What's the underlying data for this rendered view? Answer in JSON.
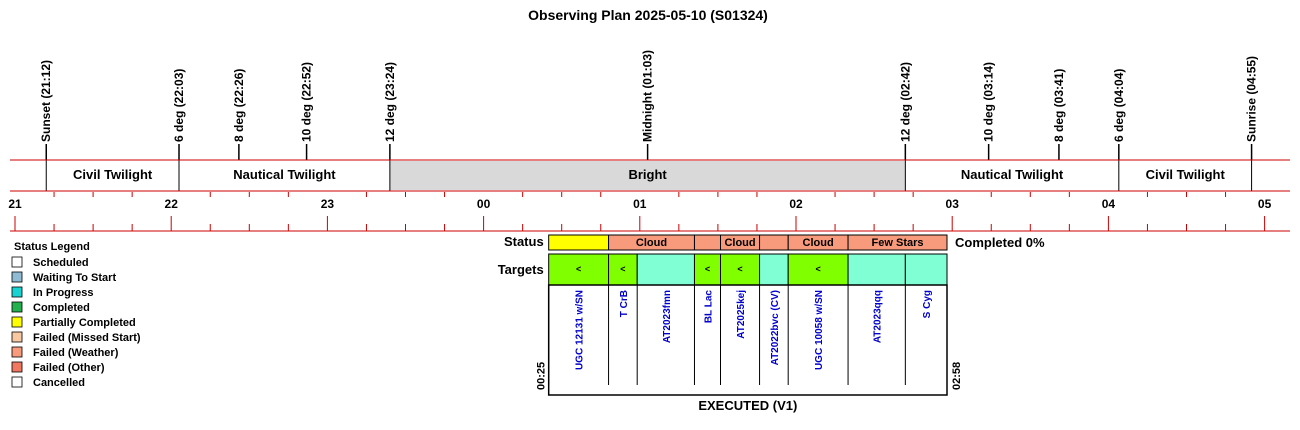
{
  "title": "Observing Plan 2025-05-10 (S01324)",
  "colors": {
    "red": "#cc0000",
    "bright": "#d9d9d9",
    "scheduled": "#ffffff",
    "waiting": "#8fbcd4",
    "in_progress": "#19d3d3",
    "completed": "#22b14c",
    "partial": "#ffff00",
    "missed": "#f8c8a0",
    "weather": "#f79b7c",
    "other": "#f07860",
    "cancelled": "#ffffff",
    "target_green": "#7fff00",
    "target_aqua": "#80ffd4",
    "target_text": "#0000cc"
  },
  "time_axis": {
    "start_hour": 21,
    "end_hour": 29,
    "hour_labels": [
      "21",
      "22",
      "23",
      "00",
      "01",
      "02",
      "03",
      "04",
      "05"
    ]
  },
  "events": [
    {
      "label": "Sunset (21:12)",
      "hour": 21.2
    },
    {
      "label": "6 deg (22:03)",
      "hour": 22.05
    },
    {
      "label": "8 deg (22:26)",
      "hour": 22.4333
    },
    {
      "label": "10 deg (22:52)",
      "hour": 22.8667
    },
    {
      "label": "12 deg (23:24)",
      "hour": 23.4
    },
    {
      "label": "Midnight (01:03)",
      "hour": 25.05
    },
    {
      "label": "12 deg (02:42)",
      "hour": 26.7
    },
    {
      "label": "10 deg (03:14)",
      "hour": 27.2333
    },
    {
      "label": "8 deg (03:41)",
      "hour": 27.6833
    },
    {
      "label": "6 deg (04:04)",
      "hour": 28.0667
    },
    {
      "label": "Sunrise (04:55)",
      "hour": 28.9167
    }
  ],
  "periods": [
    {
      "label": "Civil Twilight",
      "start": 21.2,
      "end": 22.05,
      "shaded": false
    },
    {
      "label": "Nautical Twilight",
      "start": 22.05,
      "end": 23.4,
      "shaded": false
    },
    {
      "label": "Bright",
      "start": 23.4,
      "end": 26.7,
      "shaded": true
    },
    {
      "label": "Nautical Twilight",
      "start": 26.7,
      "end": 28.0667,
      "shaded": false
    },
    {
      "label": "Civil Twilight",
      "start": 28.0667,
      "end": 28.9167,
      "shaded": false
    }
  ],
  "legend": {
    "title": "Status Legend",
    "items": [
      {
        "label": "Scheduled",
        "color": "#ffffff"
      },
      {
        "label": "Waiting To Start",
        "color": "#8fbcd4"
      },
      {
        "label": "In Progress",
        "color": "#19d3d3"
      },
      {
        "label": "Completed",
        "color": "#22b14c"
      },
      {
        "label": "Partially Completed",
        "color": "#ffff00"
      },
      {
        "label": "Failed (Missed Start)",
        "color": "#f8c8a0"
      },
      {
        "label": "Failed (Weather)",
        "color": "#f79b7c"
      },
      {
        "label": "Failed (Other)",
        "color": "#f07860"
      },
      {
        "label": "Cancelled",
        "color": "#ffffff"
      }
    ]
  },
  "plan": {
    "status_label": "Status",
    "targets_label": "Targets",
    "completed_text": "Completed 0%",
    "start_time": "00:25",
    "end_time": "02:58",
    "footer": "EXECUTED (V1)",
    "status_segments": [
      {
        "start": 24.4167,
        "end": 24.8,
        "color": "#ffff00",
        "label": ""
      },
      {
        "start": 24.8,
        "end": 25.35,
        "color": "#f79b7c",
        "label": "Cloud"
      },
      {
        "start": 25.35,
        "end": 25.5167,
        "color": "#f79b7c",
        "label": ""
      },
      {
        "start": 25.5167,
        "end": 25.7667,
        "color": "#f79b7c",
        "label": "Cloud"
      },
      {
        "start": 25.7667,
        "end": 25.95,
        "color": "#f79b7c",
        "label": ""
      },
      {
        "start": 25.95,
        "end": 26.3333,
        "color": "#f79b7c",
        "label": "Cloud"
      },
      {
        "start": 26.3333,
        "end": 26.9667,
        "color": "#f79b7c",
        "label": "Few Stars"
      }
    ],
    "targets": [
      {
        "name": "UGC 12131 w/SN",
        "start": 24.4167,
        "end": 24.8,
        "color": "#7fff00",
        "mark": "<"
      },
      {
        "name": "T CrB",
        "start": 24.8,
        "end": 24.9833,
        "color": "#7fff00",
        "mark": "<"
      },
      {
        "name": "AT2023fmn",
        "start": 24.9833,
        "end": 25.35,
        "color": "#80ffd4",
        "mark": ""
      },
      {
        "name": "BL Lac",
        "start": 25.35,
        "end": 25.5167,
        "color": "#7fff00",
        "mark": "<"
      },
      {
        "name": "AT2025kej",
        "start": 25.5167,
        "end": 25.7667,
        "color": "#7fff00",
        "mark": "<"
      },
      {
        "name": "AT2022bvc (CV)",
        "start": 25.7667,
        "end": 25.95,
        "color": "#80ffd4",
        "mark": ""
      },
      {
        "name": "UGC 10058 w/SN",
        "start": 25.95,
        "end": 26.3333,
        "color": "#7fff00",
        "mark": "<"
      },
      {
        "name": "AT2023qqq",
        "start": 26.3333,
        "end": 26.7,
        "color": "#80ffd4",
        "mark": ""
      },
      {
        "name": "S Cyg",
        "start": 26.7,
        "end": 26.9667,
        "color": "#80ffd4",
        "mark": ""
      }
    ]
  }
}
